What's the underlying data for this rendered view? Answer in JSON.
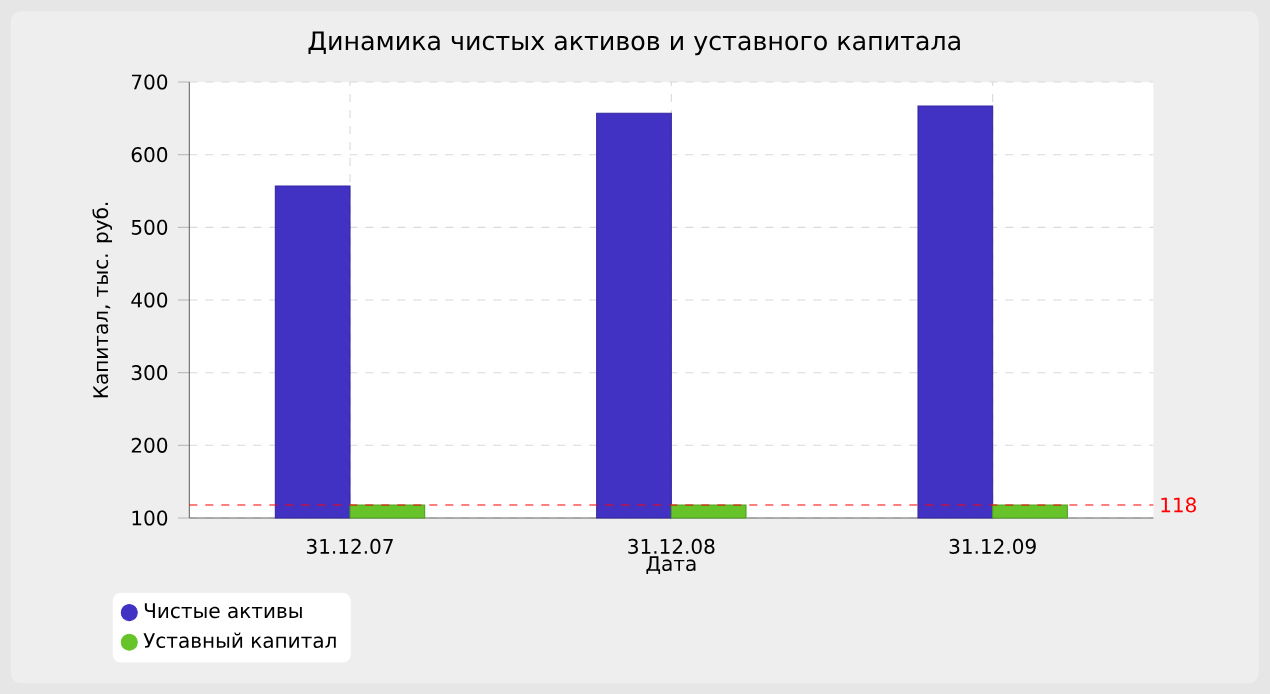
{
  "chart_data": {
    "type": "bar",
    "title": "Динамика чистых активов и уставного капитала",
    "xlabel": "Дата",
    "ylabel": "Капитал, тыс. руб.",
    "categories": [
      "31.12.07",
      "31.12.08",
      "31.12.09"
    ],
    "series": [
      {
        "name": "Чистые активы",
        "color": "#4132c4",
        "values": [
          557,
          657,
          667
        ]
      },
      {
        "name": "Уставный капитал",
        "color": "#66c42a",
        "values": [
          118,
          118,
          118
        ]
      }
    ],
    "ylim": [
      100,
      700
    ],
    "yticks": [
      100,
      200,
      300,
      400,
      500,
      600,
      700
    ],
    "grid": true,
    "legend": "bottom left",
    "ref_lines": [
      {
        "axis": "y",
        "value": 118,
        "label": "118",
        "color": "#ff0000",
        "line_style": "dashed"
      }
    ]
  }
}
